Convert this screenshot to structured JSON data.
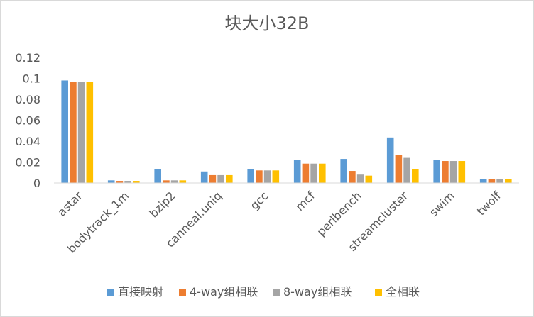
{
  "chart_data": {
    "type": "bar",
    "title": "块大小32B",
    "xlabel": "",
    "ylabel": "",
    "ylim": [
      0,
      0.12
    ],
    "yticks": [
      "0",
      "0.02",
      "0.04",
      "0.06",
      "0.08",
      "0.1",
      "0.12"
    ],
    "ytick_values": [
      0,
      0.02,
      0.04,
      0.06,
      0.08,
      0.1,
      0.12
    ],
    "grid": false,
    "legend_position": "bottom",
    "categories": [
      "astar",
      "bodytrack_1m",
      "bzip2",
      "canneal.uniq",
      "gcc",
      "mcf",
      "perlbench",
      "streamcluster",
      "swim",
      "twolf"
    ],
    "series": [
      {
        "name": "直接映射",
        "color": "#5b9bd5",
        "values": [
          0.098,
          0.0025,
          0.013,
          0.011,
          0.0135,
          0.022,
          0.023,
          0.0435,
          0.022,
          0.004
        ]
      },
      {
        "name": "4-way组相联",
        "color": "#ed7d31",
        "values": [
          0.0965,
          0.002,
          0.0025,
          0.0075,
          0.012,
          0.0185,
          0.0115,
          0.0265,
          0.021,
          0.0035
        ]
      },
      {
        "name": "8-way组相联",
        "color": "#a5a5a5",
        "values": [
          0.0965,
          0.002,
          0.0025,
          0.0075,
          0.012,
          0.0185,
          0.008,
          0.024,
          0.021,
          0.0035
        ]
      },
      {
        "name": "全相联",
        "color": "#ffc000",
        "values": [
          0.0965,
          0.002,
          0.0025,
          0.0075,
          0.012,
          0.0185,
          0.007,
          0.013,
          0.021,
          0.0035
        ]
      }
    ]
  }
}
